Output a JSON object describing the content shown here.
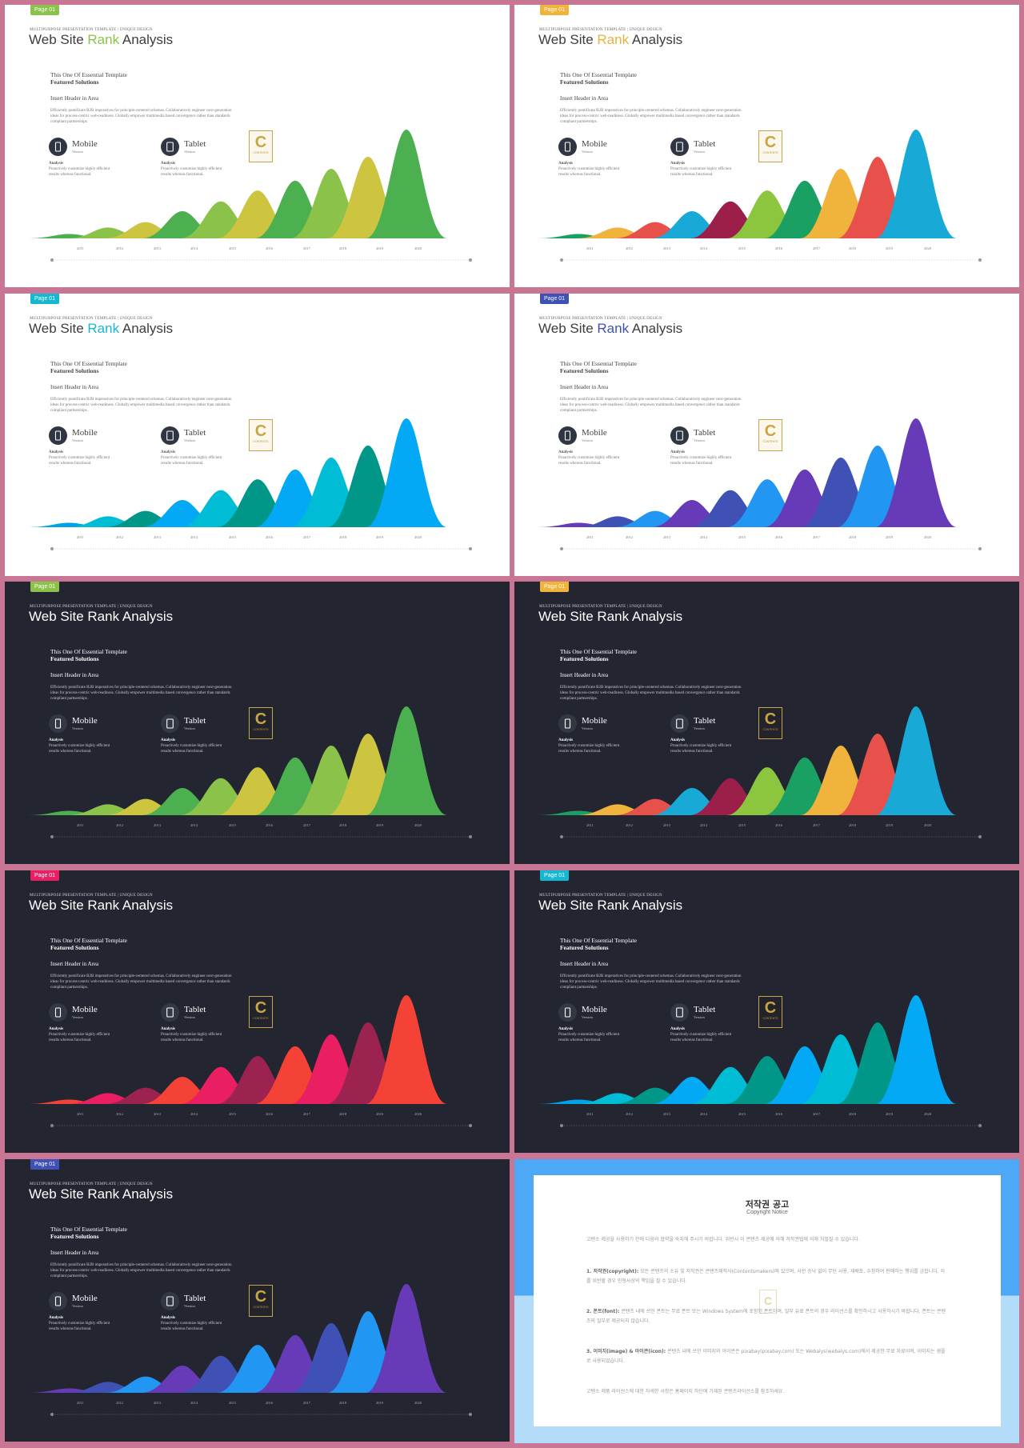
{
  "slide_text": {
    "badge": "Page 01",
    "subtitle": "MULTIPURPOSE PRESENTATION TEMPLATE | UNIQUE DESIGN",
    "title_pre": "Web Site ",
    "title_rank": "Rank",
    "title_post": " Analysis",
    "essential": "This One Of Essential  Template",
    "featured": "Featured Solutions",
    "insert_header": "Insert Header  in Area",
    "description": "Efficiently pontificate B2B imperatives for principle-centered schemas. Collaboratively engineer next-generation ideas for process-centric web-readiness. Globally empower multimedia based convergence rather than standards compliant partnerships.",
    "devices": [
      {
        "name": "Mobile",
        "version": "Version",
        "analysis": "Analysis",
        "text": "Proactively customize highly efficient results whereas functional."
      },
      {
        "name": "Tablet",
        "version": "Version",
        "analysis": "Analysis",
        "text": "Proactively customize highly efficient results whereas functional."
      }
    ],
    "logo_letter": "C",
    "logo_text": "CONTENTS"
  },
  "chart_data": {
    "type": "area",
    "title": "Web Site Rank Analysis",
    "categories": [
      "2011",
      "2012",
      "2013",
      "2014",
      "2015",
      "2016",
      "2017",
      "2018",
      "2019",
      "2020"
    ],
    "values": [
      4,
      10,
      15,
      25,
      34,
      44,
      53,
      64,
      75,
      100
    ],
    "ylim": [
      0,
      100
    ],
    "grid": false,
    "legend": "none"
  },
  "slides": [
    {
      "theme": "light",
      "badge_color": "#8bc34a",
      "rank_color": "#8bc34a",
      "colors": [
        "#4caf50",
        "#8bc34a",
        "#cdc440",
        "#4caf50",
        "#8bc34a",
        "#cdc440",
        "#4caf50",
        "#8bc34a",
        "#cdc440",
        "#4caf50"
      ]
    },
    {
      "theme": "light",
      "badge_color": "#f0b43c",
      "rank_color": "#e8b23c",
      "colors": [
        "#1aa063",
        "#f0b43c",
        "#e8514b",
        "#18a9d6",
        "#9b1f49",
        "#8cc63f",
        "#1aa063",
        "#f0b43c",
        "#e8514b",
        "#18a9d6"
      ]
    },
    {
      "theme": "light",
      "badge_color": "#14b8d0",
      "rank_color": "#14b8d0",
      "colors": [
        "#00a2e8",
        "#00bcd4",
        "#009688",
        "#03a9f4",
        "#00bcd4",
        "#009688",
        "#03a9f4",
        "#00bcd4",
        "#009688",
        "#03a9f4"
      ]
    },
    {
      "theme": "light",
      "badge_color": "#3f51b5",
      "rank_color": "#3f51b5",
      "colors": [
        "#673ab7",
        "#3f51b5",
        "#2196f3",
        "#673ab7",
        "#3f51b5",
        "#2196f3",
        "#673ab7",
        "#3f51b5",
        "#2196f3",
        "#673ab7"
      ]
    },
    {
      "theme": "dark",
      "badge_color": "#8bc34a",
      "rank_color": "",
      "colors": [
        "#4caf50",
        "#8bc34a",
        "#cdc440",
        "#4caf50",
        "#8bc34a",
        "#cdc440",
        "#4caf50",
        "#8bc34a",
        "#cdc440",
        "#4caf50"
      ]
    },
    {
      "theme": "dark",
      "badge_color": "#f0b43c",
      "rank_color": "",
      "colors": [
        "#1aa063",
        "#f0b43c",
        "#e8514b",
        "#18a9d6",
        "#9b1f49",
        "#8cc63f",
        "#1aa063",
        "#f0b43c",
        "#e8514b",
        "#18a9d6"
      ]
    },
    {
      "theme": "dark",
      "badge_color": "#e91e63",
      "rank_color": "",
      "colors": [
        "#f44336",
        "#e91e63",
        "#9c2350",
        "#f44336",
        "#e91e63",
        "#9c2350",
        "#f44336",
        "#e91e63",
        "#9c2350",
        "#f44336"
      ]
    },
    {
      "theme": "dark",
      "badge_color": "#14b8d0",
      "rank_color": "",
      "colors": [
        "#00a2e8",
        "#00bcd4",
        "#009688",
        "#03a9f4",
        "#00bcd4",
        "#009688",
        "#03a9f4",
        "#00bcd4",
        "#009688",
        "#03a9f4"
      ]
    },
    {
      "theme": "dark",
      "badge_color": "#3f51b5",
      "rank_color": "",
      "colors": [
        "#673ab7",
        "#3f51b5",
        "#2196f3",
        "#673ab7",
        "#3f51b5",
        "#2196f3",
        "#673ab7",
        "#3f51b5",
        "#2196f3",
        "#673ab7"
      ]
    }
  ],
  "copyright": {
    "title": "저작권 공고",
    "subtitle": "Copyright Notice",
    "intro": "고텐소 제공을 사용하기 전에 다음의 협약을 숙지해 주시기 바랍니다. 위반시 이 콘텐츠 제공에 의해 저작권법에 의해 처벌될 수 있습니다.",
    "items": [
      {
        "head": "1. 저작권(copyright):",
        "body": " 모든 콘텐츠의 소유 및 저작권은 콘텐츠제작사(Contentsmakers)에 있으며, 사전 승낙 없이 무단 사용, 재배포, 수정하여 판매하는 행위를 금합니다. 이를 위반할 경우 민형사상의 책임을 질 수 있습니다."
      },
      {
        "head": "2. 폰트(font):",
        "body": " 콘텐츠 내에 쓰인 폰트는 무료 폰트 또는 Windows System에 포함된 폰트이며, 일부 유료 폰트의 경우 라이선스를 확인하시고 사용하시기 바랍니다. 폰트는 콘텐츠의 일부로 제공되지 않습니다."
      },
      {
        "head": "3. 이미지(image) & 아이콘(icon):",
        "body": " 콘텐츠 내에 쓰인 이미지와 아이콘은 pixabay(pixabay.com) 또는 Webalys(webalys.com)에서 제공한 무료 자료이며, 이미지는 샘플로 사용되었습니다."
      }
    ],
    "outro": "고텐소 제품 라이선스에 대한 자세한 사항은 홈페이지 하단에 기재된 콘텐츠라이선스를 참조하세요."
  }
}
